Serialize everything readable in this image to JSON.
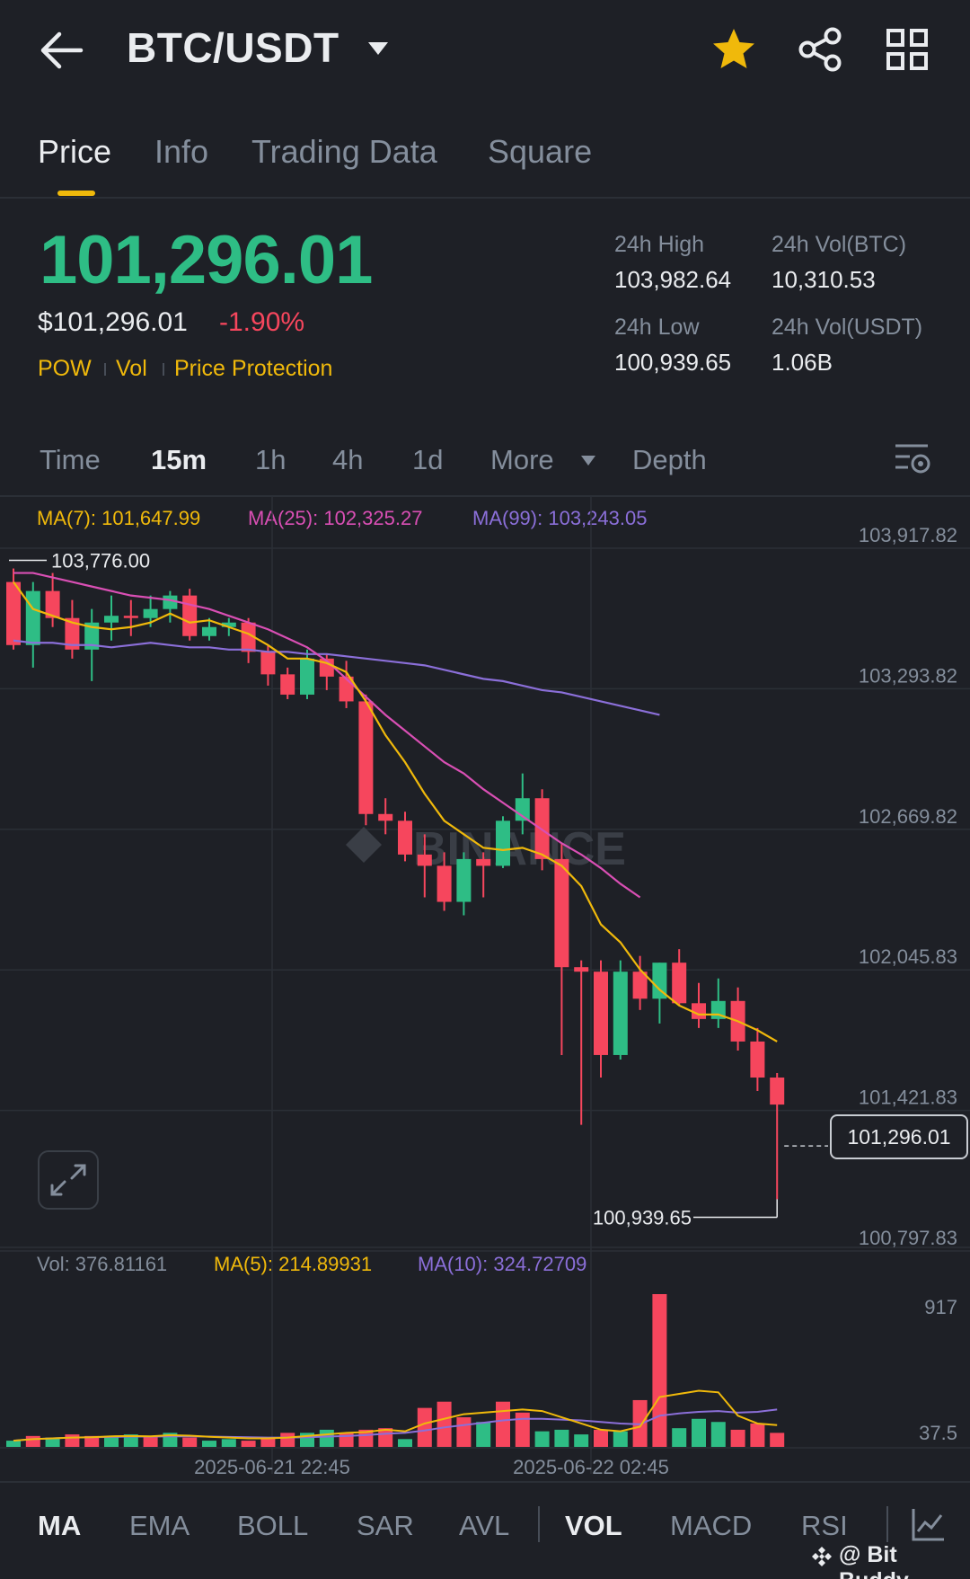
{
  "header": {
    "title": "BTC/USDT"
  },
  "tabs": [
    {
      "label": "Price",
      "active": true
    },
    {
      "label": "Info",
      "active": false
    },
    {
      "label": "Trading Data",
      "active": false
    },
    {
      "label": "Square",
      "active": false
    }
  ],
  "price": {
    "last": "101,296.01",
    "usd": "$101,296.01",
    "change_pct": "-1.90%",
    "tags": [
      "POW",
      "Vol",
      "Price Protection"
    ]
  },
  "stats": {
    "high_label": "24h High",
    "high_value": "103,982.64",
    "vol_btc_label": "24h Vol(BTC)",
    "vol_btc_value": "10,310.53",
    "low_label": "24h Low",
    "low_value": "100,939.65",
    "vol_usdt_label": "24h Vol(USDT)",
    "vol_usdt_value": "1.06B"
  },
  "intervals": [
    {
      "label": "Time",
      "active": false
    },
    {
      "label": "15m",
      "active": true
    },
    {
      "label": "1h",
      "active": false
    },
    {
      "label": "4h",
      "active": false
    },
    {
      "label": "1d",
      "active": false
    },
    {
      "label": "More",
      "active": false
    },
    {
      "label": "Depth",
      "active": false
    }
  ],
  "ma_legend": {
    "ma7": "MA(7): 101,647.99",
    "ma25": "MA(25): 102,325.27",
    "ma99": "MA(99): 103,243.05"
  },
  "vol_legend": {
    "vol": "Vol: 376.81161",
    "ma5": "MA(5): 214.89931",
    "ma10": "MA(10): 324.72709"
  },
  "colors": {
    "up": "#2ebd85",
    "down": "#f6465d",
    "ma7": "#f0b90b",
    "ma25": "#d94fb4",
    "ma99": "#8b6fd9",
    "accent": "#f0b90b"
  },
  "chart_data": {
    "type": "candlestick",
    "price_axis_labels": [
      "103,917.82",
      "103,293.82",
      "102,669.82",
      "102,045.83",
      "101,421.83",
      "100,797.83"
    ],
    "price_axis_values": [
      103917.82,
      103293.82,
      102669.82,
      102045.83,
      101421.83,
      100797.83
    ],
    "volume_axis_labels": [
      "917",
      "37.5"
    ],
    "volume_axis_values": [
      917,
      37.5
    ],
    "x_labels": [
      "2025-06-21 22:45",
      "2025-06-22 02:45"
    ],
    "high_marker": "103,776.00",
    "low_marker": "100,939.65",
    "current_price": "101,296.01",
    "watermark": "BINANCE",
    "candles": [
      [
        103680,
        103400,
        103740,
        103380
      ],
      [
        103400,
        103640,
        103680,
        103300
      ],
      [
        103640,
        103520,
        103720,
        103480
      ],
      [
        103520,
        103380,
        103600,
        103340
      ],
      [
        103380,
        103500,
        103560,
        103240
      ],
      [
        103500,
        103530,
        103620,
        103420
      ],
      [
        103530,
        103520,
        103600,
        103440
      ],
      [
        103520,
        103560,
        103620,
        103480
      ],
      [
        103560,
        103620,
        103640,
        103500
      ],
      [
        103620,
        103440,
        103650,
        103420
      ],
      [
        103440,
        103480,
        103520,
        103420
      ],
      [
        103480,
        103500,
        103520,
        103440
      ],
      [
        103500,
        103370,
        103520,
        103320
      ],
      [
        103370,
        103270,
        103400,
        103220
      ],
      [
        103270,
        103180,
        103300,
        103160
      ],
      [
        103180,
        103340,
        103380,
        103160
      ],
      [
        103340,
        103260,
        103360,
        103200
      ],
      [
        103260,
        103150,
        103330,
        103120
      ],
      [
        103150,
        102650,
        103180,
        102600
      ],
      [
        102650,
        102620,
        102720,
        102560
      ],
      [
        102620,
        102470,
        102660,
        102440
      ],
      [
        102470,
        102420,
        102560,
        102280
      ],
      [
        102420,
        102260,
        102480,
        102220
      ],
      [
        102260,
        102450,
        102480,
        102200
      ],
      [
        102450,
        102420,
        102480,
        102280
      ],
      [
        102420,
        102620,
        102640,
        102410
      ],
      [
        102620,
        102720,
        102830,
        102560
      ],
      [
        102720,
        102450,
        102760,
        102400
      ],
      [
        102450,
        101970,
        102520,
        101580
      ],
      [
        101970,
        101950,
        102000,
        101270
      ],
      [
        101950,
        101580,
        102000,
        101480
      ],
      [
        101580,
        101950,
        102000,
        101560
      ],
      [
        101950,
        101830,
        102020,
        101780
      ],
      [
        101830,
        101990,
        101990,
        101720
      ],
      [
        101990,
        101810,
        102050,
        101800
      ],
      [
        101810,
        101740,
        101900,
        101700
      ],
      [
        101740,
        101820,
        101920,
        101700
      ],
      [
        101820,
        101640,
        101880,
        101600
      ],
      [
        101640,
        101480,
        101700,
        101420
      ],
      [
        101480,
        101360,
        101500,
        100940
      ]
    ],
    "ma7": [
      103680,
      103560,
      103530,
      103500,
      103480,
      103470,
      103480,
      103500,
      103540,
      103500,
      103510,
      103480,
      103450,
      103400,
      103340,
      103340,
      103320,
      103280,
      103150,
      103000,
      102880,
      102740,
      102620,
      102560,
      102500,
      102490,
      102500,
      102470,
      102420,
      102330,
      102160,
      102080,
      101960,
      101870,
      101800,
      101760,
      101760,
      101730,
      101690,
      101640
    ],
    "ma25": [
      103720,
      103720,
      103700,
      103680,
      103660,
      103640,
      103620,
      103610,
      103600,
      103580,
      103560,
      103530,
      103500,
      103470,
      103430,
      103390,
      103330,
      103250,
      103170,
      103090,
      103020,
      102950,
      102880,
      102830,
      102760,
      102700,
      102640,
      102580,
      102520,
      102470,
      102410,
      102340,
      102280
    ],
    "ma99": [
      103420,
      103410,
      103410,
      103400,
      103400,
      103390,
      103400,
      103410,
      103400,
      103390,
      103390,
      103380,
      103380,
      103370,
      103370,
      103360,
      103360,
      103350,
      103340,
      103330,
      103320,
      103310,
      103290,
      103270,
      103250,
      103240,
      103220,
      103200,
      103190,
      103170,
      103150,
      103130,
      103110,
      103090
    ],
    "volume": [
      40,
      70,
      60,
      80,
      70,
      70,
      80,
      70,
      90,
      60,
      40,
      50,
      40,
      60,
      90,
      90,
      110,
      90,
      110,
      120,
      50,
      250,
      290,
      190,
      160,
      290,
      220,
      100,
      110,
      80,
      110,
      100,
      300,
      980,
      120,
      180,
      160,
      110,
      150,
      90
    ],
    "volume_dir": [
      "u",
      "d",
      "u",
      "d",
      "d",
      "u",
      "u",
      "d",
      "u",
      "d",
      "u",
      "u",
      "d",
      "d",
      "d",
      "u",
      "u",
      "d",
      "d",
      "d",
      "u",
      "d",
      "d",
      "d",
      "u",
      "d",
      "d",
      "u",
      "u",
      "u",
      "d",
      "u",
      "d",
      "d",
      "u",
      "u",
      "u",
      "d",
      "d",
      "d"
    ],
    "vol_ma5": [
      40,
      50,
      55,
      60,
      62,
      68,
      70,
      68,
      75,
      72,
      65,
      60,
      55,
      55,
      60,
      70,
      80,
      90,
      95,
      110,
      100,
      150,
      180,
      210,
      220,
      230,
      240,
      230,
      190,
      150,
      110,
      100,
      130,
      320,
      340,
      360,
      350,
      200,
      150,
      140
    ],
    "vol_ma10": [
      40,
      50,
      55,
      60,
      62,
      64,
      66,
      66,
      68,
      68,
      66,
      64,
      62,
      60,
      60,
      62,
      66,
      70,
      76,
      84,
      90,
      105,
      125,
      140,
      155,
      170,
      180,
      180,
      175,
      170,
      160,
      150,
      145,
      200,
      215,
      225,
      230,
      220,
      225,
      240
    ]
  },
  "indicators": [
    {
      "label": "MA",
      "active": true
    },
    {
      "label": "EMA",
      "active": false
    },
    {
      "label": "BOLL",
      "active": false
    },
    {
      "label": "SAR",
      "active": false
    },
    {
      "label": "AVL",
      "active": false
    },
    {
      "label": "VOL",
      "active": true
    },
    {
      "label": "MACD",
      "active": false
    },
    {
      "label": "RSI",
      "active": false
    }
  ],
  "watermark_credit": "@ Bit Buddy"
}
